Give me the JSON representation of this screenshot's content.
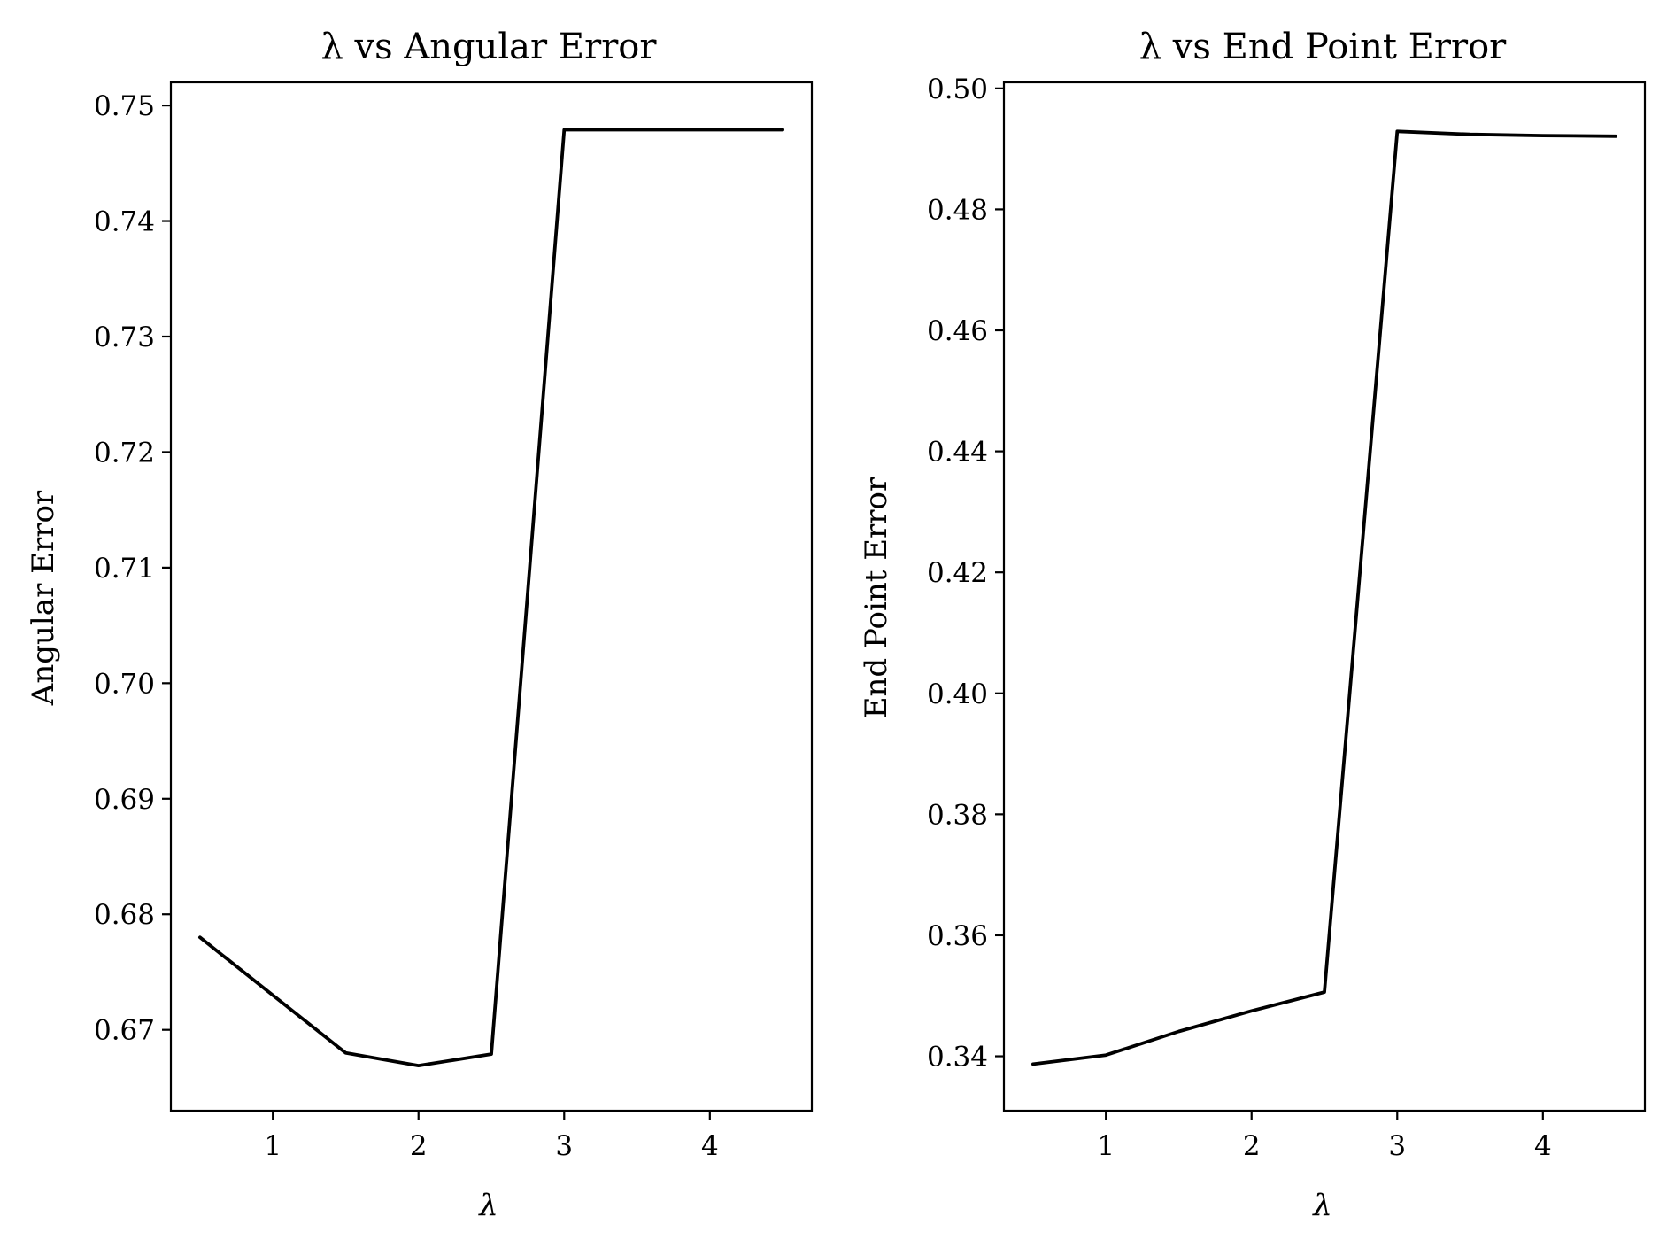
{
  "chart_data": [
    {
      "type": "line",
      "title": "λ vs Angular Error",
      "xlabel": "λ",
      "ylabel": "Angular Error",
      "xlim": [
        0.3,
        4.7
      ],
      "ylim": [
        0.663,
        0.752
      ],
      "x_ticks": [
        1,
        2,
        3,
        4
      ],
      "y_ticks": [
        0.67,
        0.68,
        0.69,
        0.7,
        0.71,
        0.72,
        0.73,
        0.74,
        0.75
      ],
      "y_tick_labels": [
        "0.67",
        "0.68",
        "0.69",
        "0.70",
        "0.71",
        "0.72",
        "0.73",
        "0.74",
        "0.75"
      ],
      "grid": false,
      "line_color": "#000000",
      "x": [
        0.5,
        1.0,
        1.5,
        2.0,
        2.5,
        3.0,
        3.5,
        4.0,
        4.5
      ],
      "y": [
        0.678,
        0.673,
        0.668,
        0.6669,
        0.6679,
        0.7479,
        0.7479,
        0.7479,
        0.7479
      ]
    },
    {
      "type": "line",
      "title": "λ vs End Point Error",
      "xlabel": "λ",
      "ylabel": "End Point Error",
      "xlim": [
        0.3,
        4.7
      ],
      "ylim": [
        0.331,
        0.501
      ],
      "x_ticks": [
        1,
        2,
        3,
        4
      ],
      "y_ticks": [
        0.34,
        0.36,
        0.38,
        0.4,
        0.42,
        0.44,
        0.46,
        0.48,
        0.5
      ],
      "y_tick_labels": [
        "0.34",
        "0.36",
        "0.38",
        "0.40",
        "0.42",
        "0.44",
        "0.46",
        "0.48",
        "0.50"
      ],
      "grid": false,
      "line_color": "#000000",
      "x": [
        0.5,
        1.0,
        1.5,
        2.0,
        2.5,
        3.0,
        3.5,
        4.0,
        4.5
      ],
      "y": [
        0.3387,
        0.3402,
        0.3441,
        0.3475,
        0.3506,
        0.4929,
        0.4924,
        0.4922,
        0.4921
      ]
    }
  ]
}
